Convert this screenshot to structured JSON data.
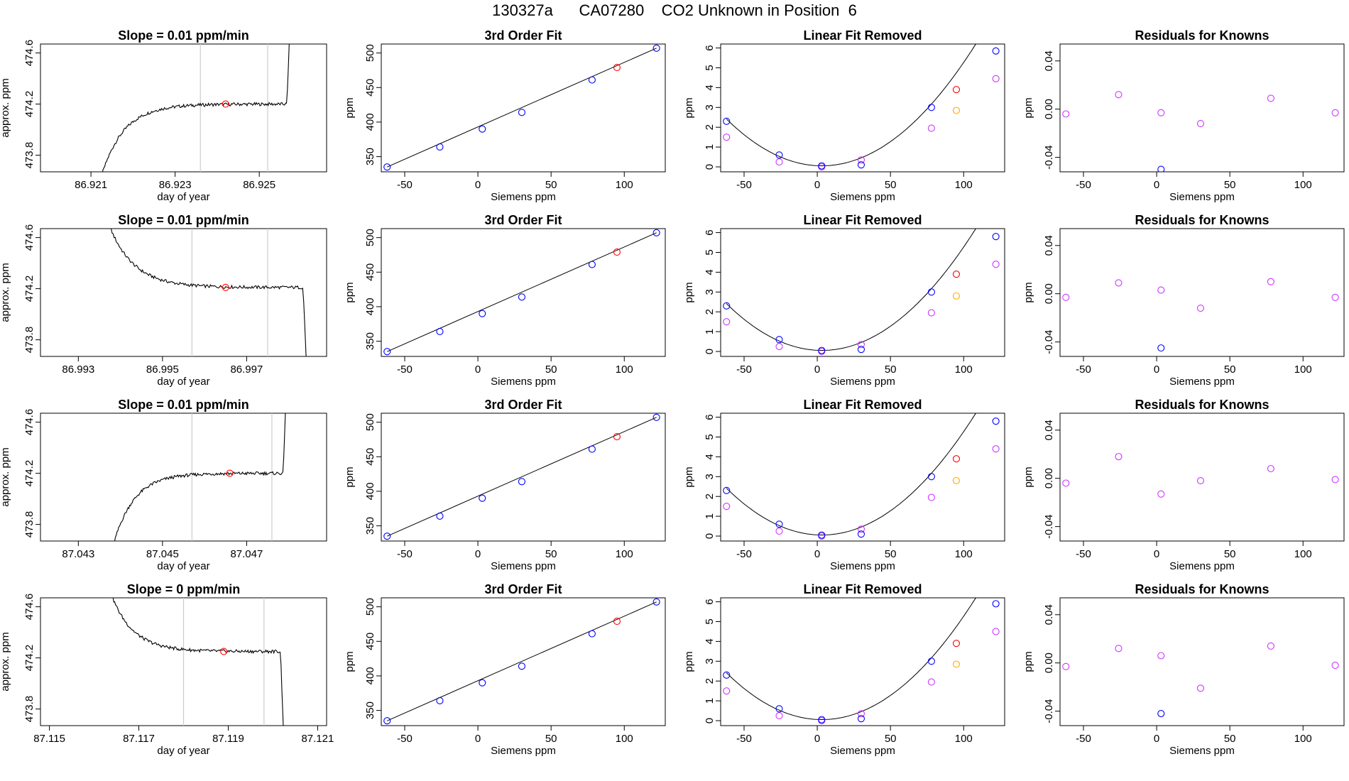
{
  "page": {
    "title": "130327a      CA07280    CO2 Unknown in Position  6"
  },
  "colors": {
    "known_point": "#0000ff",
    "unknown_point": "#ff0000",
    "removed_point": "#cc33ff",
    "alt_point": "#ffaa00",
    "window_line": "#cccccc",
    "axis": "#000000"
  },
  "chart_data": [
    {
      "row": 1,
      "type": "line",
      "title": "Slope =  0.01  ppm/min",
      "xlabel": "day of year",
      "ylabel": "approx. ppm",
      "xlim": [
        86.9198,
        86.9266
      ],
      "ylim": [
        473.67,
        474.67
      ],
      "xticks": [
        86.921,
        86.923,
        86.925
      ],
      "xtick_labels": [
        "86.921",
        "86.923",
        "86.925"
      ],
      "yticks": [
        473.8,
        474.2,
        474.6
      ],
      "ytick_labels": [
        "473.8",
        "474.2",
        "474.6"
      ],
      "window": [
        86.9236,
        86.9252
      ],
      "trace": {
        "shape": "rise",
        "x_start": 86.921,
        "x_end": 86.9258,
        "plateau": 474.2
      },
      "marker": {
        "x": 86.9242,
        "y": 474.2
      }
    },
    {
      "row": 2,
      "type": "line",
      "title": "Slope =  0.01  ppm/min",
      "xlabel": "day of year",
      "ylabel": "approx. ppm",
      "xlim": [
        86.9921,
        86.9989
      ],
      "ylim": [
        473.67,
        474.67
      ],
      "xticks": [
        86.993,
        86.995,
        86.997
      ],
      "xtick_labels": [
        "86.993",
        "86.995",
        "86.997"
      ],
      "yticks": [
        473.8,
        474.2,
        474.6
      ],
      "ytick_labels": [
        "473.8",
        "474.2",
        "474.6"
      ],
      "window": [
        86.9957,
        86.9975
      ],
      "trace": {
        "shape": "fall",
        "x_start": 86.9932,
        "x_end": 86.9985,
        "plateau": 474.21
      },
      "marker": {
        "x": 86.9965,
        "y": 474.21
      }
    },
    {
      "row": 3,
      "type": "line",
      "title": "Slope =  0.01  ppm/min",
      "xlabel": "day of year",
      "ylabel": "approx. ppm",
      "xlim": [
        87.0421,
        87.0489
      ],
      "ylim": [
        473.67,
        474.67
      ],
      "xticks": [
        87.043,
        87.045,
        87.047
      ],
      "xtick_labels": [
        "87.043",
        "87.045",
        "87.047"
      ],
      "yticks": [
        473.8,
        474.2,
        474.6
      ],
      "ytick_labels": [
        "473.8",
        "474.2",
        "474.6"
      ],
      "window": [
        87.0457,
        87.0476
      ],
      "trace": {
        "shape": "rise",
        "x_start": 87.0436,
        "x_end": 87.048,
        "plateau": 474.2
      },
      "marker": {
        "x": 87.0466,
        "y": 474.2
      }
    },
    {
      "row": 4,
      "type": "line",
      "title": "Slope =  0  ppm/min",
      "xlabel": "day of year",
      "ylabel": "approx. ppm",
      "xlim": [
        87.1148,
        87.1212
      ],
      "ylim": [
        473.67,
        474.67
      ],
      "xticks": [
        87.115,
        87.117,
        87.119,
        87.121
      ],
      "xtick_labels": [
        "87.115",
        "87.117",
        "87.119",
        "87.121"
      ],
      "yticks": [
        473.8,
        474.2,
        474.6
      ],
      "ytick_labels": [
        "473.8",
        "474.2",
        "474.6"
      ],
      "window": [
        87.118,
        87.1198
      ],
      "trace": {
        "shape": "fall",
        "x_start": 87.1159,
        "x_end": 87.1203,
        "plateau": 474.25
      },
      "marker": {
        "x": 87.1189,
        "y": 474.25
      }
    },
    {
      "row": 1,
      "type": "scatter",
      "title": "3rd Order Fit",
      "xlabel": "Siemens ppm",
      "ylabel": "ppm",
      "xlim": [
        -66,
        128
      ],
      "ylim": [
        328,
        513
      ],
      "xticks": [
        -50,
        0,
        50,
        100
      ],
      "xtick_labels": [
        "-50",
        "0",
        "50",
        "100"
      ],
      "yticks": [
        350,
        400,
        450,
        500
      ],
      "ytick_labels": [
        "350",
        "400",
        "450",
        "500"
      ],
      "fit_line": [
        [
          -62,
          335
        ],
        [
          122,
          507
        ]
      ],
      "knowns": {
        "x": [
          -62,
          -26,
          3,
          30,
          78,
          122
        ],
        "y": [
          335,
          364,
          390,
          414,
          461,
          507
        ]
      },
      "unknown": {
        "x": [
          95
        ],
        "y": [
          479
        ]
      }
    },
    {
      "row": 2,
      "type": "scatter",
      "title": "3rd Order Fit",
      "xlabel": "Siemens ppm",
      "ylabel": "ppm",
      "xlim": [
        -66,
        128
      ],
      "ylim": [
        328,
        513
      ],
      "xticks": [
        -50,
        0,
        50,
        100
      ],
      "xtick_labels": [
        "-50",
        "0",
        "50",
        "100"
      ],
      "yticks": [
        350,
        400,
        450,
        500
      ],
      "ytick_labels": [
        "350",
        "400",
        "450",
        "500"
      ],
      "fit_line": [
        [
          -62,
          335
        ],
        [
          122,
          507
        ]
      ],
      "knowns": {
        "x": [
          -62,
          -26,
          3,
          30,
          78,
          122
        ],
        "y": [
          335,
          364,
          390,
          414,
          461,
          507
        ]
      },
      "unknown": {
        "x": [
          95
        ],
        "y": [
          479
        ]
      }
    },
    {
      "row": 3,
      "type": "scatter",
      "title": "3rd Order Fit",
      "xlabel": "Siemens ppm",
      "ylabel": "ppm",
      "xlim": [
        -66,
        128
      ],
      "ylim": [
        328,
        513
      ],
      "xticks": [
        -50,
        0,
        50,
        100
      ],
      "xtick_labels": [
        "-50",
        "0",
        "50",
        "100"
      ],
      "yticks": [
        350,
        400,
        450,
        500
      ],
      "ytick_labels": [
        "350",
        "400",
        "450",
        "500"
      ],
      "fit_line": [
        [
          -62,
          335
        ],
        [
          122,
          507
        ]
      ],
      "knowns": {
        "x": [
          -62,
          -26,
          3,
          30,
          78,
          122
        ],
        "y": [
          335,
          364,
          390,
          414,
          461,
          507
        ]
      },
      "unknown": {
        "x": [
          95
        ],
        "y": [
          479
        ]
      }
    },
    {
      "row": 4,
      "type": "scatter",
      "title": "3rd Order Fit",
      "xlabel": "Siemens ppm",
      "ylabel": "ppm",
      "xlim": [
        -66,
        128
      ],
      "ylim": [
        328,
        513
      ],
      "xticks": [
        -50,
        0,
        50,
        100
      ],
      "xtick_labels": [
        "-50",
        "0",
        "50",
        "100"
      ],
      "yticks": [
        350,
        400,
        450,
        500
      ],
      "ytick_labels": [
        "350",
        "400",
        "450",
        "500"
      ],
      "fit_line": [
        [
          -62,
          335
        ],
        [
          122,
          507
        ]
      ],
      "knowns": {
        "x": [
          -62,
          -26,
          3,
          30,
          78,
          122
        ],
        "y": [
          335,
          364,
          390,
          414,
          461,
          507
        ]
      },
      "unknown": {
        "x": [
          95
        ],
        "y": [
          479
        ]
      }
    },
    {
      "row": 1,
      "type": "scatter",
      "title": "Linear Fit Removed",
      "xlabel": "Siemens ppm",
      "ylabel": "ppm",
      "xlim": [
        -66,
        128
      ],
      "ylim": [
        -0.25,
        6.2
      ],
      "xticks": [
        -50,
        0,
        50,
        100
      ],
      "xtick_labels": [
        "-50",
        "0",
        "50",
        "100"
      ],
      "yticks": [
        0,
        1,
        2,
        3,
        4,
        5,
        6
      ],
      "ytick_labels": [
        "0",
        "1",
        "2",
        "3",
        "4",
        "5",
        "6"
      ],
      "curve": {
        "a": 0.000556,
        "b": -0.0035,
        "c": 0.06,
        "x_start": -62,
        "x_end": 122
      },
      "knowns": {
        "x": [
          -62,
          -26,
          3,
          30,
          78,
          122
        ],
        "y": [
          2.3,
          0.6,
          0.05,
          0.1,
          3.0,
          5.85
        ]
      },
      "unknown": {
        "x": [
          95
        ],
        "y": [
          3.9
        ]
      },
      "removed": {
        "x": [
          -62,
          -26,
          3,
          30,
          78,
          122
        ],
        "y": [
          1.5,
          0.25,
          0.0,
          0.35,
          1.95,
          4.45
        ]
      },
      "alt": {
        "x": [
          95
        ],
        "y": [
          2.85
        ]
      }
    },
    {
      "row": 2,
      "type": "scatter",
      "title": "Linear Fit Removed",
      "xlabel": "Siemens ppm",
      "ylabel": "ppm",
      "xlim": [
        -66,
        128
      ],
      "ylim": [
        -0.25,
        6.2
      ],
      "xticks": [
        -50,
        0,
        50,
        100
      ],
      "xtick_labels": [
        "-50",
        "0",
        "50",
        "100"
      ],
      "yticks": [
        0,
        1,
        2,
        3,
        4,
        5,
        6
      ],
      "ytick_labels": [
        "0",
        "1",
        "2",
        "3",
        "4",
        "5",
        "6"
      ],
      "curve": {
        "a": 0.000556,
        "b": -0.0035,
        "c": 0.06,
        "x_start": -62,
        "x_end": 122
      },
      "knowns": {
        "x": [
          -62,
          -26,
          3,
          30,
          78,
          122
        ],
        "y": [
          2.3,
          0.6,
          0.05,
          0.1,
          3.0,
          5.8
        ]
      },
      "unknown": {
        "x": [
          95
        ],
        "y": [
          3.9
        ]
      },
      "removed": {
        "x": [
          -62,
          -26,
          3,
          30,
          78,
          122
        ],
        "y": [
          1.5,
          0.25,
          0.0,
          0.35,
          1.95,
          4.4
        ]
      },
      "alt": {
        "x": [
          95
        ],
        "y": [
          2.8
        ]
      }
    },
    {
      "row": 3,
      "type": "scatter",
      "title": "Linear Fit Removed",
      "xlabel": "Siemens ppm",
      "ylabel": "ppm",
      "xlim": [
        -66,
        128
      ],
      "ylim": [
        -0.25,
        6.2
      ],
      "xticks": [
        -50,
        0,
        50,
        100
      ],
      "xtick_labels": [
        "-50",
        "0",
        "50",
        "100"
      ],
      "yticks": [
        0,
        1,
        2,
        3,
        4,
        5,
        6
      ],
      "ytick_labels": [
        "0",
        "1",
        "2",
        "3",
        "4",
        "5",
        "6"
      ],
      "curve": {
        "a": 0.000556,
        "b": -0.0035,
        "c": 0.06,
        "x_start": -62,
        "x_end": 122
      },
      "knowns": {
        "x": [
          -62,
          -26,
          3,
          30,
          78,
          122
        ],
        "y": [
          2.3,
          0.6,
          0.05,
          0.1,
          3.0,
          5.8
        ]
      },
      "unknown": {
        "x": [
          95
        ],
        "y": [
          3.9
        ]
      },
      "removed": {
        "x": [
          -62,
          -26,
          3,
          30,
          78,
          122
        ],
        "y": [
          1.5,
          0.25,
          0.0,
          0.35,
          1.95,
          4.4
        ]
      },
      "alt": {
        "x": [
          95
        ],
        "y": [
          2.8
        ]
      }
    },
    {
      "row": 4,
      "type": "scatter",
      "title": "Linear Fit Removed",
      "xlabel": "Siemens ppm",
      "ylabel": "ppm",
      "xlim": [
        -66,
        128
      ],
      "ylim": [
        -0.25,
        6.2
      ],
      "xticks": [
        -50,
        0,
        50,
        100
      ],
      "xtick_labels": [
        "-50",
        "0",
        "50",
        "100"
      ],
      "yticks": [
        0,
        1,
        2,
        3,
        4,
        5,
        6
      ],
      "ytick_labels": [
        "0",
        "1",
        "2",
        "3",
        "4",
        "5",
        "6"
      ],
      "curve": {
        "a": 0.000556,
        "b": -0.0035,
        "c": 0.06,
        "x_start": -62,
        "x_end": 122
      },
      "knowns": {
        "x": [
          -62,
          -26,
          3,
          30,
          78,
          122
        ],
        "y": [
          2.3,
          0.6,
          0.05,
          0.1,
          3.0,
          5.9
        ]
      },
      "unknown": {
        "x": [
          95
        ],
        "y": [
          3.9
        ]
      },
      "removed": {
        "x": [
          -62,
          -26,
          3,
          30,
          78,
          122
        ],
        "y": [
          1.5,
          0.25,
          0.0,
          0.35,
          1.95,
          4.5
        ]
      },
      "alt": {
        "x": [
          95
        ],
        "y": [
          2.85
        ]
      }
    },
    {
      "row": 1,
      "type": "scatter",
      "title": "Residuals for Knowns",
      "xlabel": "Siemens ppm",
      "ylabel": "ppm",
      "xlim": [
        -66,
        128
      ],
      "ylim": [
        -0.052,
        0.054
      ],
      "xticks": [
        -50,
        0,
        50,
        100
      ],
      "xtick_labels": [
        "-50",
        "0",
        "50",
        "100"
      ],
      "yticks": [
        -0.04,
        0.0,
        0.04
      ],
      "ytick_labels": [
        "-0.04",
        "0.00",
        "0.04"
      ],
      "points": {
        "x": [
          -62,
          -26,
          3,
          30,
          78,
          122
        ],
        "y": [
          -0.004,
          0.012,
          -0.003,
          -0.012,
          0.009,
          -0.003
        ]
      },
      "blue_points": {
        "x": [
          3
        ],
        "y": [
          -0.05
        ]
      }
    },
    {
      "row": 2,
      "type": "scatter",
      "title": "Residuals for Knowns",
      "xlabel": "Siemens ppm",
      "ylabel": "ppm",
      "xlim": [
        -66,
        128
      ],
      "ylim": [
        -0.052,
        0.054
      ],
      "xticks": [
        -50,
        0,
        50,
        100
      ],
      "xtick_labels": [
        "-50",
        "0",
        "50",
        "100"
      ],
      "yticks": [
        -0.04,
        0.0,
        0.04
      ],
      "ytick_labels": [
        "-0.04",
        "0.00",
        "0.04"
      ],
      "points": {
        "x": [
          -62,
          -26,
          3,
          30,
          78,
          122
        ],
        "y": [
          -0.003,
          0.009,
          0.003,
          -0.012,
          0.01,
          -0.003
        ]
      },
      "blue_points": {
        "x": [
          3
        ],
        "y": [
          -0.045
        ]
      }
    },
    {
      "row": 3,
      "type": "scatter",
      "title": "Residuals for Knowns",
      "xlabel": "Siemens ppm",
      "ylabel": "ppm",
      "xlim": [
        -66,
        128
      ],
      "ylim": [
        -0.052,
        0.054
      ],
      "xticks": [
        -50,
        0,
        50,
        100
      ],
      "xtick_labels": [
        "-50",
        "0",
        "50",
        "100"
      ],
      "yticks": [
        -0.04,
        0.0,
        0.04
      ],
      "ytick_labels": [
        "-0.04",
        "0.00",
        "0.04"
      ],
      "points": {
        "x": [
          -62,
          -26,
          3,
          30,
          78,
          122
        ],
        "y": [
          -0.004,
          0.018,
          -0.013,
          -0.002,
          0.008,
          -0.001
        ]
      },
      "blue_points": {
        "x": [],
        "y": []
      }
    },
    {
      "row": 4,
      "type": "scatter",
      "title": "Residuals for Knowns",
      "xlabel": "Siemens ppm",
      "ylabel": "ppm",
      "xlim": [
        -66,
        128
      ],
      "ylim": [
        -0.052,
        0.054
      ],
      "xticks": [
        -50,
        0,
        50,
        100
      ],
      "xtick_labels": [
        "-50",
        "0",
        "50",
        "100"
      ],
      "yticks": [
        -0.04,
        0.0,
        0.04
      ],
      "ytick_labels": [
        "-0.04",
        "0.00",
        "0.04"
      ],
      "points": {
        "x": [
          -62,
          -26,
          3,
          30,
          78,
          122
        ],
        "y": [
          -0.003,
          0.012,
          0.006,
          -0.021,
          0.014,
          -0.002
        ]
      },
      "blue_points": {
        "x": [
          3
        ],
        "y": [
          -0.042
        ]
      }
    }
  ]
}
